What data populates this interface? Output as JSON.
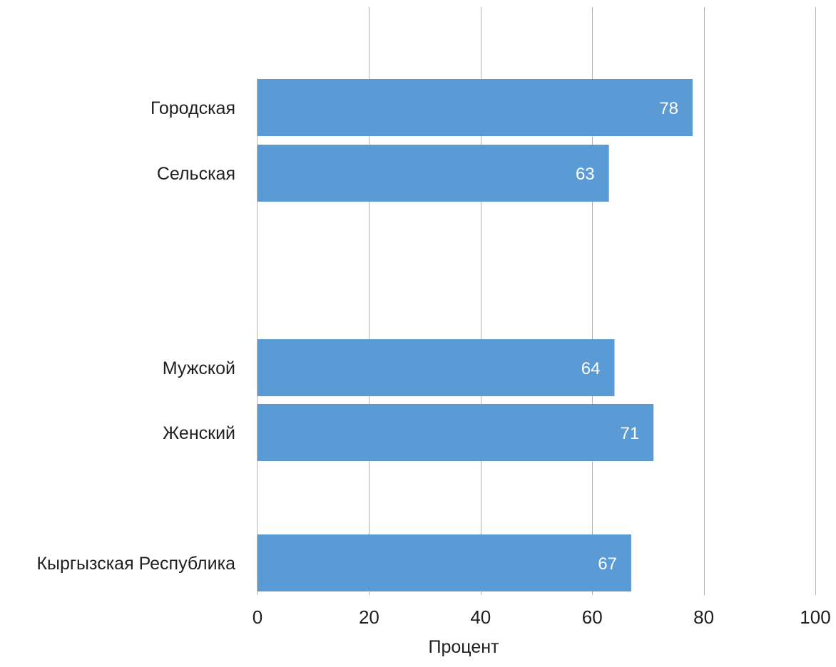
{
  "chart_data": {
    "type": "bar",
    "orientation": "horizontal",
    "categories": [
      "Городская",
      "Сельская",
      "Мужской",
      "Женский",
      "Кыргызская Республика"
    ],
    "values": [
      78,
      63,
      64,
      71,
      67
    ],
    "data_labels": [
      "78",
      "63",
      "64",
      "71",
      "67"
    ],
    "xlabel": "Процент",
    "ylabel": "",
    "xlim": [
      0,
      100
    ],
    "xticks": [
      0,
      20,
      40,
      60,
      80,
      100
    ],
    "xtick_labels": [
      "0",
      "20",
      "40",
      "60",
      "80",
      "100"
    ],
    "grid": "vertical",
    "legend": "none",
    "bar_color": "#5b9bd5",
    "grid_color": "#b4b4b4",
    "label_color": "#ffffff"
  }
}
